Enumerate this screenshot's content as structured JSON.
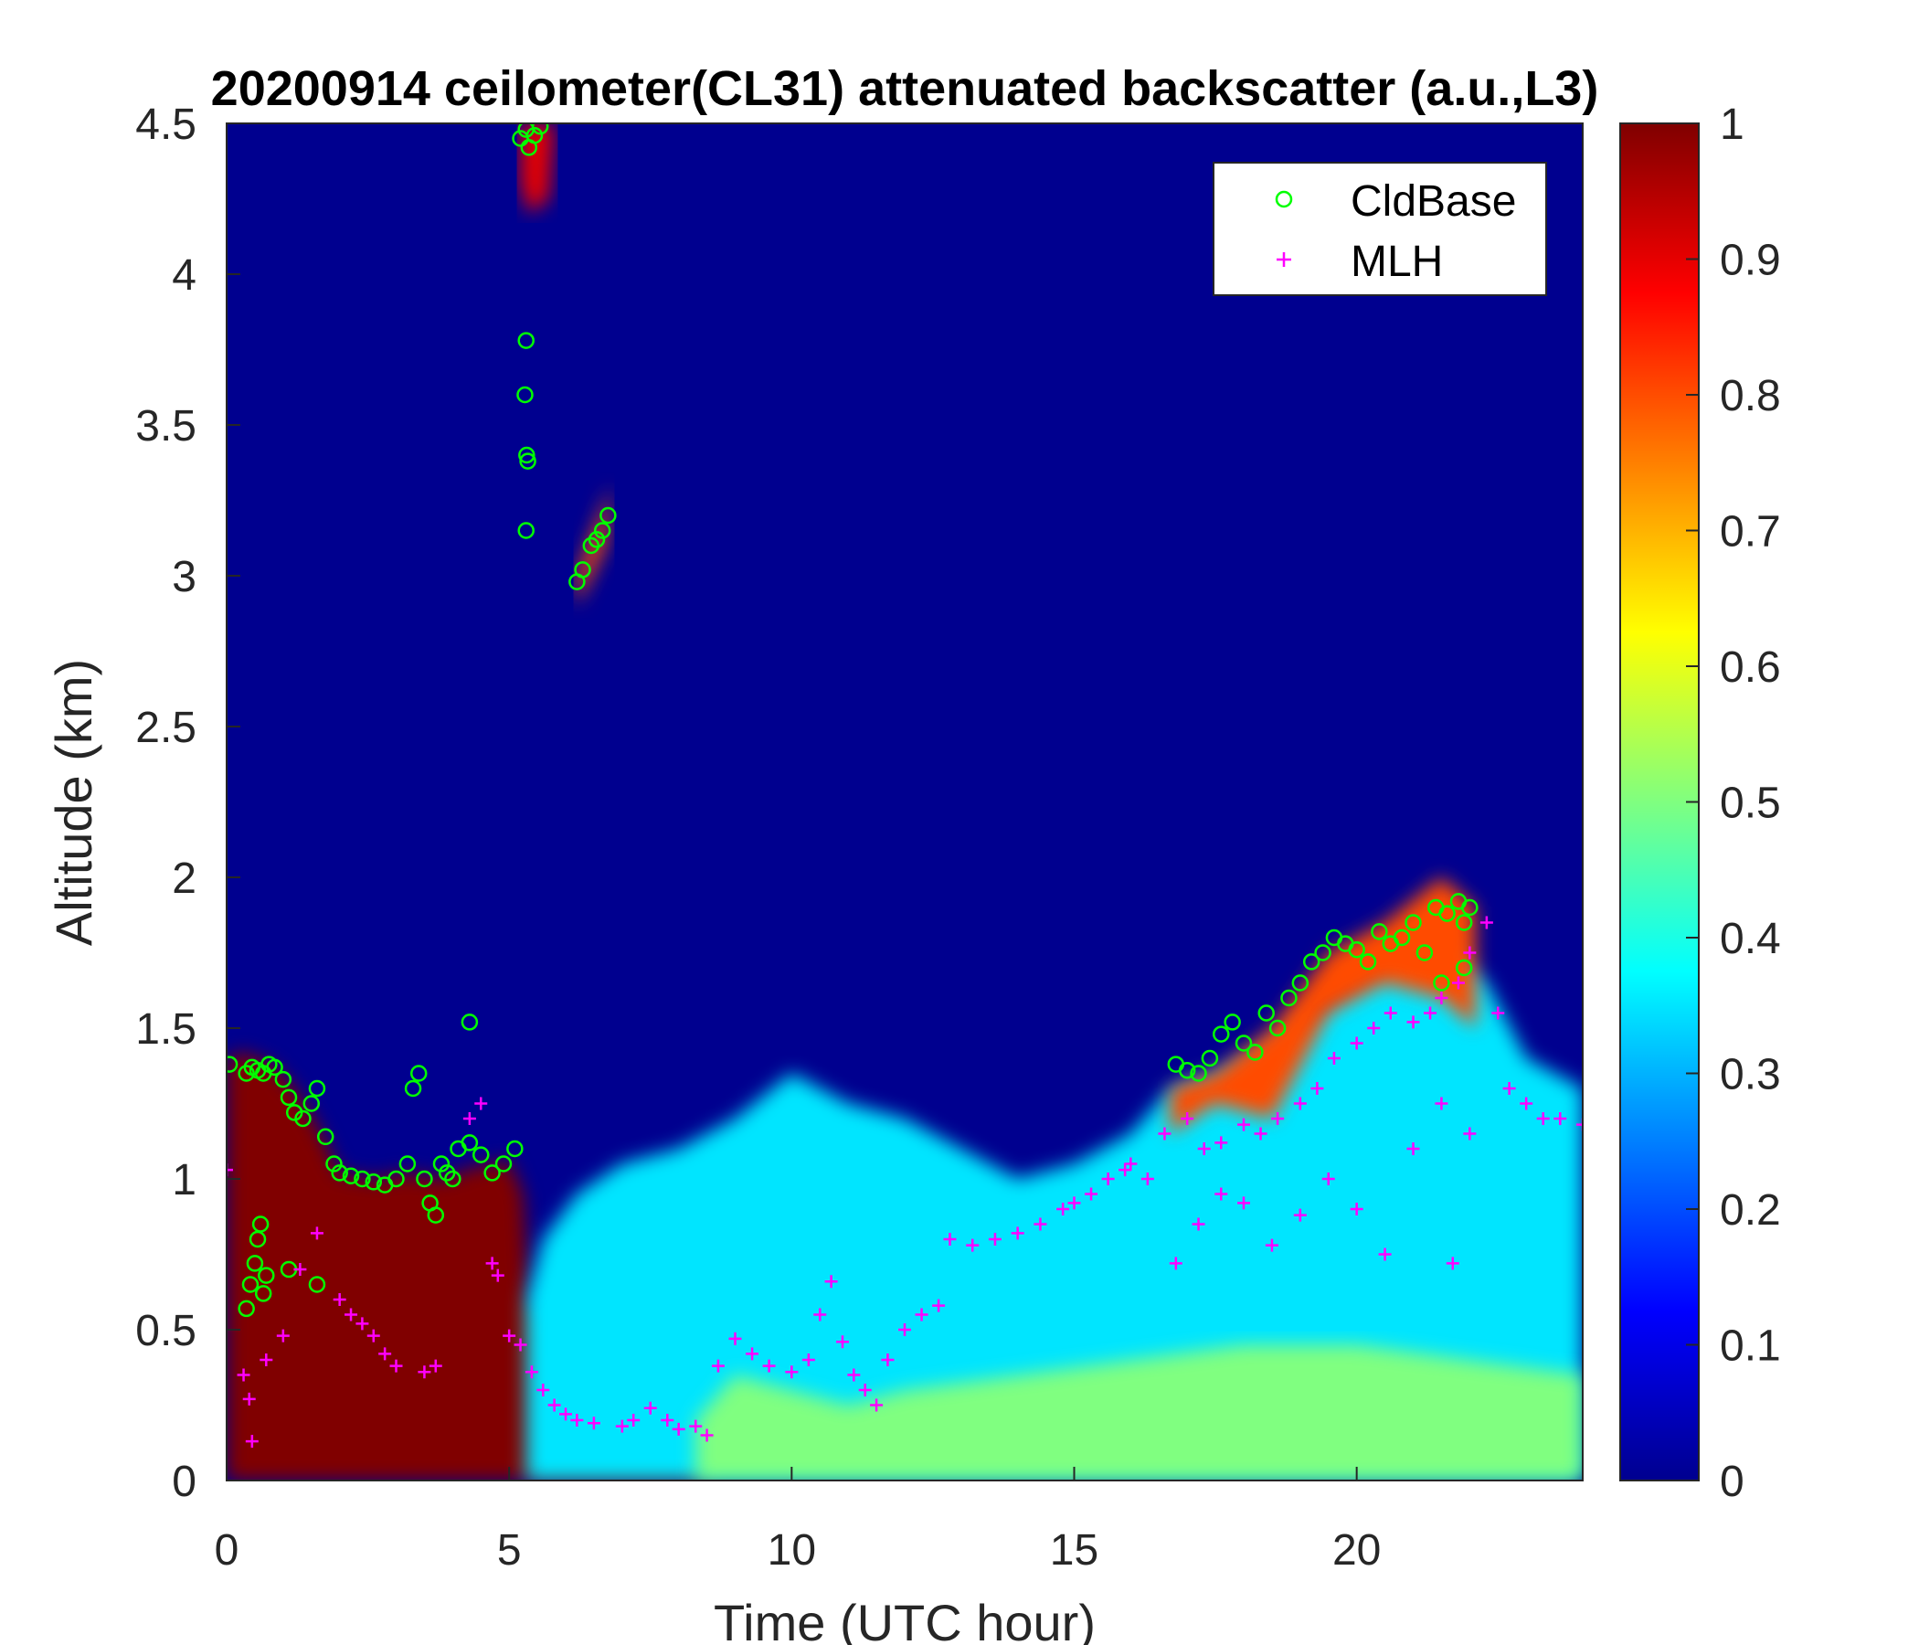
{
  "chart_data": {
    "type": "heatmap",
    "title": "20200914 ceilometer(CL31) attenuated backscatter (a.u.,L3)",
    "xlabel": "Time (UTC hour)",
    "ylabel": "Altitude (km)",
    "xlim": [
      0,
      24
    ],
    "ylim": [
      0,
      4.5
    ],
    "xticks": [
      0,
      5,
      10,
      15,
      20
    ],
    "yticks": [
      0,
      0.5,
      1,
      1.5,
      2,
      2.5,
      3,
      3.5,
      4,
      4.5
    ],
    "colorbar": {
      "colormap": "jet",
      "range": [
        0,
        1
      ],
      "ticks": [
        0,
        0.1,
        0.2,
        0.3,
        0.4,
        0.5,
        0.6,
        0.7,
        0.8,
        0.9,
        1
      ]
    },
    "grid": false,
    "legend": {
      "placement": "top-right",
      "entries": [
        {
          "name": "CldBase",
          "marker": "circle",
          "color": "#00ff00"
        },
        {
          "name": "MLH",
          "marker": "plus",
          "color": "#ff00ff"
        }
      ]
    },
    "backscatter_regions": [
      {
        "level": 1.0,
        "polygon": [
          [
            0,
            0
          ],
          [
            0,
            1.4
          ],
          [
            0.3,
            1.42
          ],
          [
            0.8,
            1.38
          ],
          [
            1.2,
            1.3
          ],
          [
            1.6,
            1.18
          ],
          [
            2.0,
            1.02
          ],
          [
            2.6,
            1.0
          ],
          [
            3.2,
            1.02
          ],
          [
            3.8,
            1.0
          ],
          [
            4.4,
            1.04
          ],
          [
            5.0,
            1.06
          ],
          [
            5.25,
            0.95
          ],
          [
            5.35,
            0.6
          ],
          [
            6.0,
            0.45
          ],
          [
            7.5,
            0.38
          ],
          [
            8.0,
            0.3
          ],
          [
            8.5,
            0.18
          ],
          [
            8.6,
            0
          ]
        ]
      },
      {
        "level": 0.35,
        "polygon": [
          [
            5.3,
            0
          ],
          [
            5.3,
            0.6
          ],
          [
            5.6,
            0.8
          ],
          [
            6.2,
            0.95
          ],
          [
            7.0,
            1.05
          ],
          [
            8.0,
            1.1
          ],
          [
            9.0,
            1.2
          ],
          [
            10.0,
            1.35
          ],
          [
            11.0,
            1.25
          ],
          [
            12.0,
            1.2
          ],
          [
            13.0,
            1.1
          ],
          [
            14.0,
            1.0
          ],
          [
            15.0,
            1.05
          ],
          [
            16.0,
            1.15
          ],
          [
            16.7,
            1.3
          ],
          [
            17.5,
            1.35
          ],
          [
            18.5,
            1.45
          ],
          [
            19.5,
            1.6
          ],
          [
            20.5,
            1.72
          ],
          [
            21.5,
            1.8
          ],
          [
            22.3,
            1.65
          ],
          [
            23.0,
            1.4
          ],
          [
            24,
            1.3
          ],
          [
            24,
            0
          ]
        ]
      },
      {
        "level": 0.5,
        "polygon": [
          [
            8.3,
            0
          ],
          [
            8.3,
            0.2
          ],
          [
            9.0,
            0.35
          ],
          [
            10.0,
            0.3
          ],
          [
            11.0,
            0.25
          ],
          [
            12.0,
            0.3
          ],
          [
            14.0,
            0.35
          ],
          [
            16.0,
            0.4
          ],
          [
            18.0,
            0.45
          ],
          [
            20.0,
            0.45
          ],
          [
            22.0,
            0.4
          ],
          [
            24,
            0.35
          ],
          [
            24,
            0
          ]
        ]
      },
      {
        "level": 0.9,
        "polygon": [
          [
            5.2,
            4.5
          ],
          [
            5.2,
            4.3
          ],
          [
            5.35,
            4.2
          ],
          [
            5.7,
            4.25
          ],
          [
            5.8,
            4.5
          ]
        ]
      },
      {
        "level": 0.8,
        "polygon": [
          [
            6.2,
            2.9
          ],
          [
            6.7,
            3.1
          ],
          [
            6.8,
            3.3
          ],
          [
            6.6,
            3.2
          ],
          [
            6.2,
            3.0
          ]
        ]
      },
      {
        "level": 0.8,
        "polygon": [
          [
            16.7,
            1.3
          ],
          [
            17.5,
            1.35
          ],
          [
            18.5,
            1.5
          ],
          [
            19.5,
            1.75
          ],
          [
            20.5,
            1.85
          ],
          [
            21.5,
            2.0
          ],
          [
            22.1,
            1.9
          ],
          [
            22.1,
            1.5
          ],
          [
            21.5,
            1.6
          ],
          [
            20.5,
            1.65
          ],
          [
            19.5,
            1.55
          ],
          [
            18.5,
            1.2
          ],
          [
            17.5,
            1.25
          ],
          [
            16.7,
            1.15
          ]
        ]
      }
    ],
    "series": [
      {
        "name": "CldBase",
        "x": [
          0.05,
          0.35,
          0.45,
          0.55,
          0.65,
          0.75,
          0.85,
          1.0,
          1.1,
          1.2,
          1.35,
          1.5,
          1.6,
          1.75,
          1.9,
          2.0,
          2.2,
          2.4,
          2.6,
          2.8,
          3.0,
          3.2,
          3.3,
          3.4,
          3.5,
          3.6,
          3.7,
          3.8,
          3.9,
          4.0,
          4.1,
          4.3,
          4.5,
          4.7,
          4.9,
          5.1,
          0.35,
          0.42,
          0.5,
          0.55,
          0.6,
          0.65,
          0.7,
          1.1,
          1.6,
          5.2,
          5.3,
          5.35,
          5.45,
          5.55,
          5.3,
          5.28,
          5.31,
          5.3,
          5.33,
          6.2,
          6.3,
          6.45,
          6.55,
          6.65,
          6.75,
          16.8,
          17.0,
          17.2,
          17.4,
          17.6,
          17.8,
          18.0,
          18.2,
          18.4,
          18.6,
          18.8,
          19.0,
          19.2,
          19.4,
          19.6,
          19.8,
          20.0,
          20.2,
          20.4,
          20.6,
          20.8,
          21.0,
          21.2,
          21.4,
          21.6,
          21.8,
          21.9,
          22.0,
          21.5,
          21.9,
          4.3
        ],
        "y": [
          1.38,
          1.35,
          1.37,
          1.36,
          1.35,
          1.38,
          1.37,
          1.33,
          1.27,
          1.22,
          1.2,
          1.25,
          1.3,
          1.14,
          1.05,
          1.02,
          1.01,
          1.0,
          0.99,
          0.98,
          1.0,
          1.05,
          1.3,
          1.35,
          1.0,
          0.92,
          0.88,
          1.05,
          1.02,
          1.0,
          1.1,
          1.12,
          1.08,
          1.02,
          1.05,
          1.1,
          0.57,
          0.65,
          0.72,
          0.8,
          0.85,
          0.62,
          0.68,
          0.7,
          0.65,
          4.45,
          4.48,
          4.42,
          4.46,
          4.49,
          3.78,
          3.6,
          3.4,
          3.15,
          3.38,
          2.98,
          3.02,
          3.1,
          3.12,
          3.15,
          3.2,
          1.38,
          1.36,
          1.35,
          1.4,
          1.48,
          1.52,
          1.45,
          1.42,
          1.55,
          1.5,
          1.6,
          1.65,
          1.72,
          1.75,
          1.8,
          1.78,
          1.76,
          1.72,
          1.82,
          1.78,
          1.8,
          1.85,
          1.75,
          1.9,
          1.88,
          1.92,
          1.85,
          1.9,
          1.65,
          1.7,
          1.52
        ]
      },
      {
        "name": "MLH",
        "x": [
          0.0,
          0.3,
          0.4,
          0.45,
          0.7,
          1.0,
          1.3,
          1.6,
          2.0,
          2.2,
          2.4,
          2.6,
          2.8,
          3.0,
          3.5,
          3.7,
          4.3,
          4.5,
          4.7,
          4.8,
          5.0,
          5.2,
          5.4,
          5.6,
          5.8,
          6.0,
          6.2,
          6.5,
          7.0,
          7.2,
          7.5,
          7.8,
          8.0,
          8.3,
          8.5,
          8.7,
          9.0,
          9.3,
          9.6,
          10.0,
          10.3,
          10.5,
          10.7,
          10.9,
          11.1,
          11.3,
          11.5,
          11.7,
          12.0,
          12.3,
          12.6,
          12.8,
          13.2,
          13.6,
          14.0,
          14.4,
          14.8,
          15.0,
          15.3,
          15.6,
          15.9,
          16.0,
          16.3,
          16.6,
          17.0,
          17.3,
          17.6,
          18.0,
          18.3,
          18.6,
          19.0,
          19.3,
          19.6,
          20.0,
          20.3,
          20.6,
          21.0,
          21.3,
          21.5,
          21.8,
          22.0,
          22.3,
          22.5,
          22.7,
          23.0,
          23.3,
          23.6,
          24.0,
          16.8,
          17.2,
          17.6,
          18.0,
          18.5,
          19.0,
          19.5,
          20.0,
          20.5,
          21.0,
          21.5,
          22.0,
          21.7
        ],
        "y": [
          1.03,
          0.35,
          0.27,
          0.13,
          0.4,
          0.48,
          0.7,
          0.82,
          0.6,
          0.55,
          0.52,
          0.48,
          0.42,
          0.38,
          0.36,
          0.38,
          1.2,
          1.25,
          0.72,
          0.68,
          0.48,
          0.45,
          0.36,
          0.3,
          0.25,
          0.22,
          0.2,
          0.19,
          0.18,
          0.2,
          0.24,
          0.2,
          0.17,
          0.18,
          0.15,
          0.38,
          0.47,
          0.42,
          0.38,
          0.36,
          0.4,
          0.55,
          0.66,
          0.46,
          0.35,
          0.3,
          0.25,
          0.4,
          0.5,
          0.55,
          0.58,
          0.8,
          0.78,
          0.8,
          0.82,
          0.85,
          0.9,
          0.92,
          0.95,
          1.0,
          1.03,
          1.05,
          1.0,
          1.15,
          1.2,
          1.1,
          1.12,
          1.18,
          1.15,
          1.2,
          1.25,
          1.3,
          1.4,
          1.45,
          1.5,
          1.55,
          1.52,
          1.55,
          1.6,
          1.65,
          1.75,
          1.85,
          1.55,
          1.3,
          1.25,
          1.2,
          1.2,
          1.18,
          0.72,
          0.85,
          0.95,
          0.92,
          0.78,
          0.88,
          1.0,
          0.9,
          0.75,
          1.1,
          1.25,
          1.15,
          0.72
        ]
      }
    ]
  }
}
